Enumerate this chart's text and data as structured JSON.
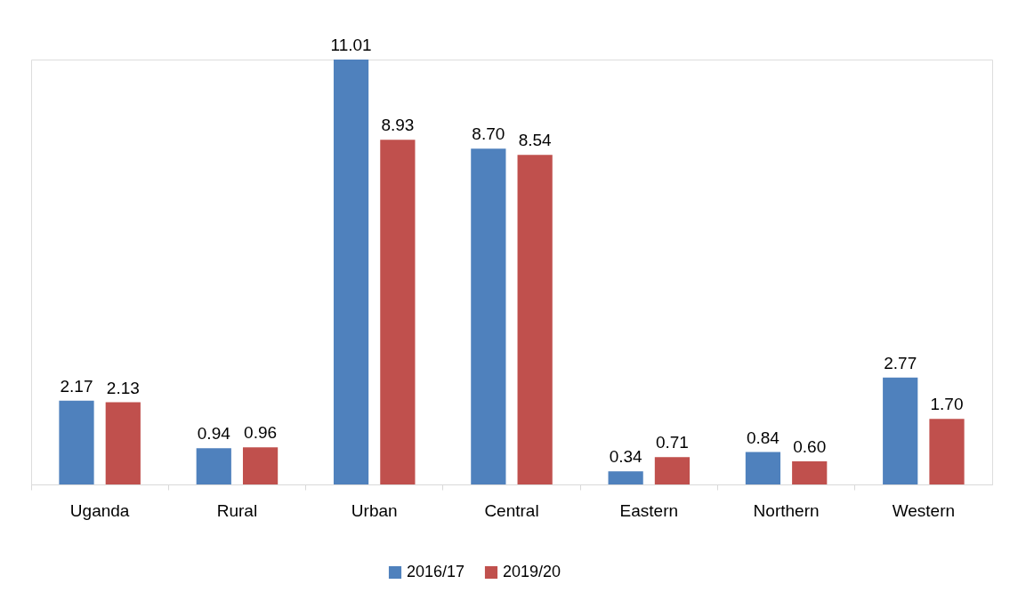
{
  "chart_data": {
    "type": "bar",
    "categories": [
      "Uganda",
      "Rural",
      "Urban",
      "Central",
      "Eastern",
      "Northern",
      "Western"
    ],
    "series": [
      {
        "name": "2016/17",
        "color": "#4f81bd",
        "values": [
          2.17,
          0.94,
          11.01,
          8.7,
          0.34,
          0.84,
          2.77
        ],
        "value_labels": [
          "2.17",
          "0.94",
          "11.01",
          "8.70",
          "0.34",
          "0.84",
          "2.77"
        ]
      },
      {
        "name": "2019/20",
        "color": "#c0504d",
        "values": [
          2.13,
          0.96,
          8.93,
          8.54,
          0.71,
          0.6,
          1.7
        ],
        "value_labels": [
          "2.13",
          "0.96",
          "8.93",
          "8.54",
          "0.71",
          "0.60",
          "1.70"
        ]
      }
    ],
    "legend": "bottom",
    "grid": false
  }
}
